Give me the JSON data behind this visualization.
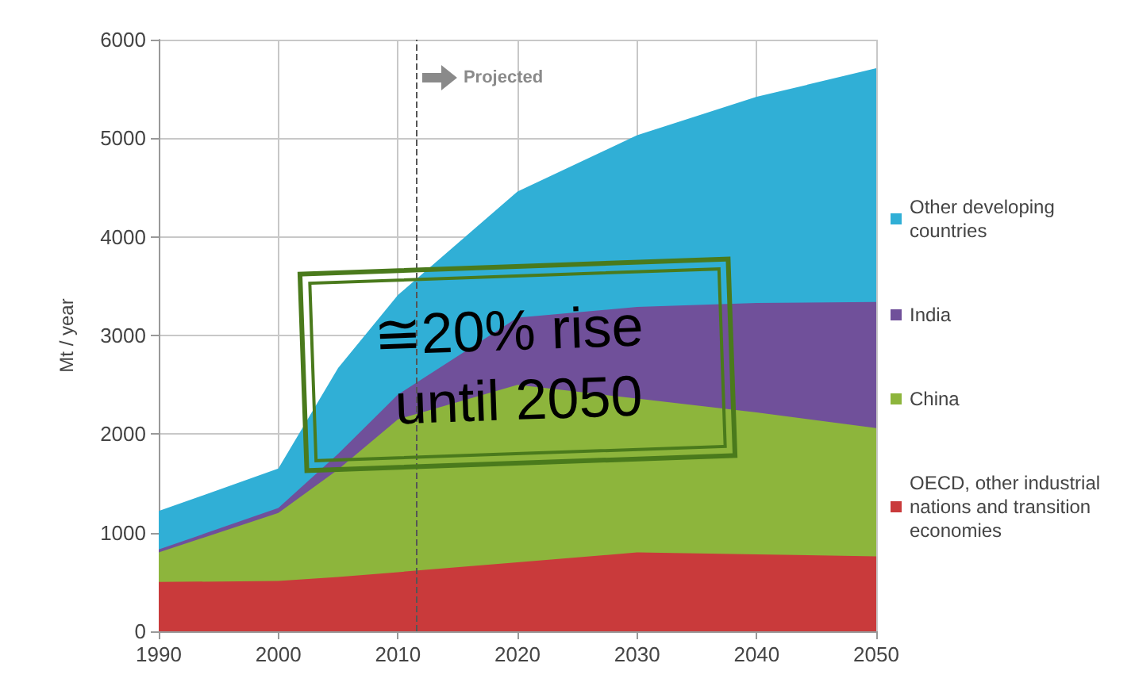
{
  "chart_data": {
    "type": "area",
    "stacked": true,
    "ylabel": "Mt / year",
    "x": [
      1990,
      2000,
      2005,
      2010,
      2020,
      2030,
      2040,
      2050
    ],
    "series": [
      {
        "name": "OECD, other industrial nations and transition economies",
        "color": "#c93a3b",
        "values": [
          500,
          510,
          550,
          600,
          700,
          800,
          780,
          760
        ]
      },
      {
        "name": "China",
        "color": "#8db53c",
        "values": [
          300,
          690,
          1090,
          1550,
          1800,
          1560,
          1440,
          1300
        ]
      },
      {
        "name": "India",
        "color": "#70509a",
        "values": [
          30,
          50,
          160,
          250,
          680,
          930,
          1110,
          1280
        ]
      },
      {
        "name": "Other developing countries",
        "color": "#30afd6",
        "values": [
          390,
          400,
          870,
          1010,
          1280,
          1740,
          2090,
          2370
        ]
      }
    ],
    "xlim": [
      1990,
      2050
    ],
    "xticks": [
      1990,
      2000,
      2010,
      2020,
      2030,
      2040,
      2050
    ],
    "ylim": [
      0,
      6000
    ],
    "yticks": [
      0,
      1000,
      2000,
      3000,
      4000,
      5000,
      6000
    ],
    "grid": true,
    "legend": "right",
    "ref_lines": [
      {
        "axis": "x",
        "value": 2011.5,
        "label": "Projected",
        "line_style": "dashed",
        "color": "#555555"
      }
    ],
    "annotations": [
      "≅20% rise until 2050"
    ]
  }
}
